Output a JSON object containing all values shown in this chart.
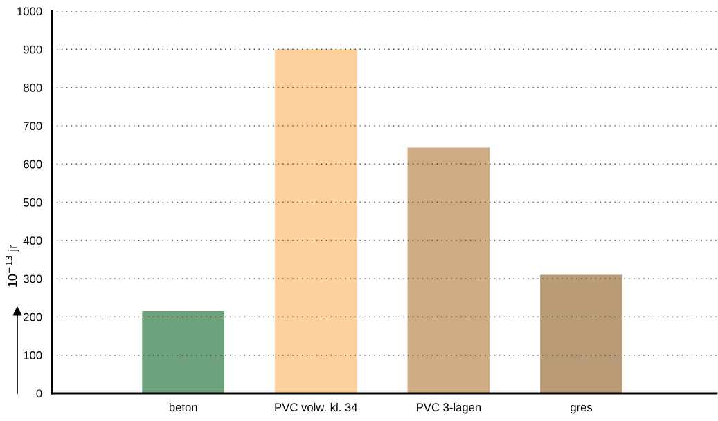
{
  "chart_data": {
    "type": "bar",
    "ylabel": "10$^{−13}$ jr",
    "categories": [
      "beton",
      "PVC volw. kl. 34",
      "PVC 3-lagen",
      "gres"
    ],
    "values": [
      215,
      900,
      643,
      310
    ],
    "colors": [
      "#6ea27c",
      "#fccf9c",
      "#cfab83",
      "#b99a76"
    ],
    "ylim": [
      0,
      1000
    ],
    "yticks": [
      0,
      100,
      200,
      300,
      400,
      500,
      600,
      700,
      800,
      900,
      1000
    ],
    "grid": "y"
  }
}
